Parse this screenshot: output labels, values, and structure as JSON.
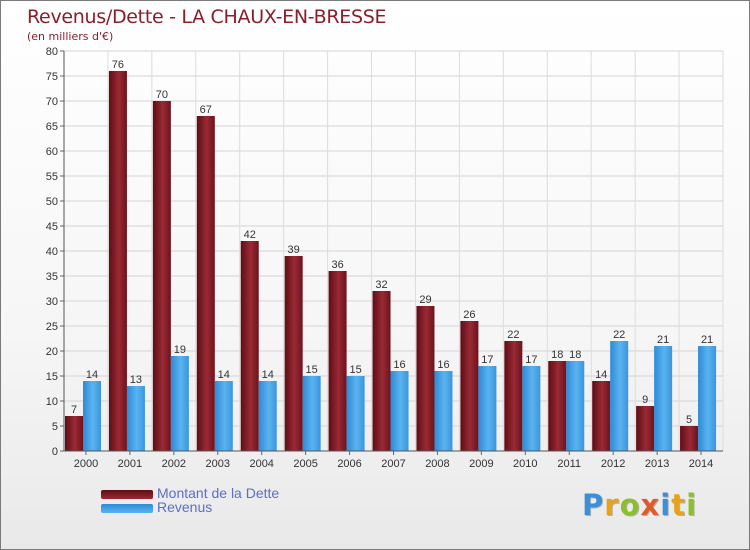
{
  "header": {
    "title": "Revenus/Dette - LA CHAUX-EN-BRESSE",
    "subtitle": "(en milliers d'€)"
  },
  "chart_data": {
    "type": "bar",
    "title": "Revenus/Dette - LA CHAUX-EN-BRESSE",
    "subtitle": "(en milliers d'€)",
    "categories": [
      "2000",
      "2001",
      "2002",
      "2003",
      "2004",
      "2005",
      "2006",
      "2007",
      "2008",
      "2009",
      "2010",
      "2011",
      "2012",
      "2013",
      "2014"
    ],
    "series": [
      {
        "name": "Montant de la Dette",
        "color": "#8a1f2b",
        "values": [
          7,
          76,
          70,
          67,
          42,
          39,
          36,
          32,
          29,
          26,
          22,
          18,
          14,
          9,
          5
        ]
      },
      {
        "name": "Revenus",
        "color": "#3d9be0",
        "values": [
          14,
          13,
          19,
          14,
          14,
          15,
          15,
          16,
          16,
          17,
          17,
          18,
          22,
          21,
          21
        ]
      }
    ],
    "ylim": [
      0,
      80
    ],
    "yticks": [
      0,
      5,
      10,
      15,
      20,
      25,
      30,
      35,
      40,
      45,
      50,
      55,
      60,
      65,
      70,
      75,
      80
    ],
    "grid": true,
    "legend_position": "bottom-left",
    "data_labels": true
  },
  "legend": {
    "items": [
      {
        "label": "Montant de la Dette",
        "color": "#8a1f2b"
      },
      {
        "label": "Revenus",
        "color": "#3d9be0"
      }
    ]
  },
  "logo": {
    "text": "Proxiti",
    "letters": [
      {
        "ch": "P",
        "color": "#3b8fd6"
      },
      {
        "ch": "r",
        "color": "#e7a21a"
      },
      {
        "ch": "o",
        "color": "#8cbf2a"
      },
      {
        "ch": "x",
        "color": "#e05a2a"
      },
      {
        "ch": "i",
        "color": "#3b8fd6"
      },
      {
        "ch": "t",
        "color": "#e7a21a"
      },
      {
        "ch": "i",
        "color": "#8cbf2a"
      }
    ]
  }
}
